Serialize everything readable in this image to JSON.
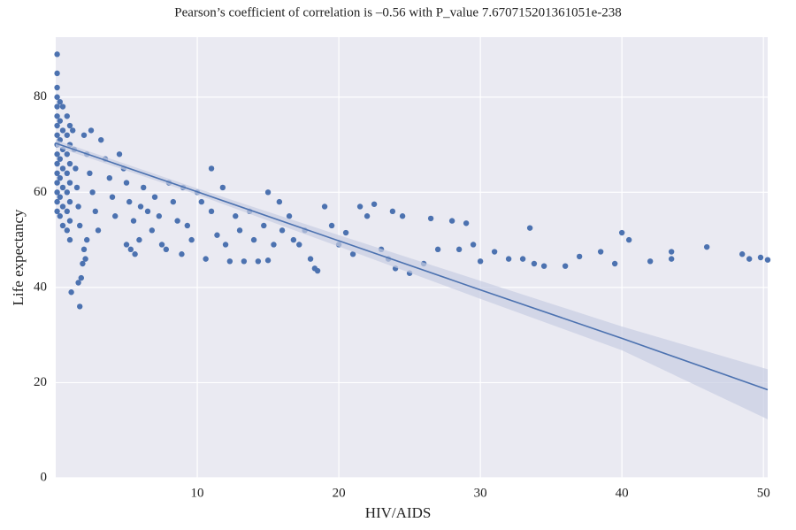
{
  "chart_data": {
    "type": "scatter",
    "title": "Pearson’s coefficient of correlation is –0.56 with P_value 7.670715201361051e-238",
    "x_label": "HIV/AIDS",
    "y_label": "Life expectancy",
    "color": "#4c72b0",
    "band_color": "#c8cde3",
    "background": "#eaeaf2",
    "grid": true,
    "xlim": [
      0,
      50.3
    ],
    "ylim": [
      0,
      92.6
    ],
    "xticks": [
      10,
      20,
      30,
      40,
      50
    ],
    "yticks": [
      0,
      20,
      40,
      60,
      80
    ],
    "x": [
      0.1,
      0.1,
      0.1,
      0.1,
      0.1,
      0.1,
      0.1,
      0.1,
      0.1,
      0.1,
      0.1,
      0.1,
      0.1,
      0.1,
      0.1,
      0.1,
      0.3,
      0.3,
      0.3,
      0.3,
      0.3,
      0.3,
      0.3,
      0.5,
      0.5,
      0.5,
      0.5,
      0.5,
      0.5,
      0.5,
      0.8,
      0.8,
      0.8,
      0.8,
      0.8,
      0.8,
      0.8,
      1,
      1,
      1,
      1,
      1,
      1,
      1,
      1.2,
      1.3,
      1.4,
      1.5,
      1.6,
      1.7,
      1.1,
      1.6,
      1.8,
      1.7,
      1.9,
      2,
      2.1,
      2.2,
      2,
      2.2,
      2.4,
      2.6,
      2.8,
      3,
      2.5,
      3.2,
      3.5,
      3.8,
      4,
      4.2,
      4.5,
      4.8,
      5,
      5.2,
      5.5,
      5,
      5.3,
      5.6,
      5.9,
      6,
      6.2,
      6.5,
      6.8,
      7,
      7.3,
      7.5,
      7.8,
      8,
      8.3,
      8.6,
      8.9,
      9,
      9.3,
      9.6,
      10,
      10.3,
      10.6,
      11,
      11,
      11.4,
      11.8,
      12,
      12.3,
      12.7,
      13,
      13.3,
      13.7,
      14,
      14.3,
      14.7,
      15,
      15,
      15.4,
      15.8,
      16,
      16.5,
      16.8,
      17.2,
      17.6,
      18,
      18.3,
      18.5,
      19,
      19.5,
      20,
      20.5,
      21,
      21.5,
      22,
      22.5,
      23,
      23.5,
      23.8,
      24,
      24.5,
      25,
      26,
      26.5,
      27,
      28,
      28.5,
      29,
      29.5,
      30,
      31,
      32,
      33,
      33.5,
      33.8,
      34.5,
      36,
      37,
      38.5,
      39.5,
      40,
      40.5,
      42,
      43.5,
      43.5,
      46,
      48.5,
      49,
      49.8,
      50.3
    ],
    "y": [
      89,
      85,
      82,
      80,
      78,
      76,
      74,
      72,
      70,
      68,
      66,
      64,
      62,
      60,
      58,
      56,
      79,
      75,
      71,
      67,
      63,
      59,
      55,
      78,
      73,
      69,
      65,
      61,
      57,
      53,
      76,
      72,
      68,
      64,
      60,
      56,
      52,
      74,
      70,
      66,
      62,
      58,
      54,
      50,
      73,
      69,
      65,
      61,
      57,
      53,
      39,
      41,
      42,
      36,
      45,
      48,
      46,
      50,
      72,
      68,
      64,
      60,
      56,
      52,
      73,
      71,
      67,
      63,
      59,
      55,
      68,
      65,
      62,
      58,
      54,
      49,
      48,
      47,
      50,
      57,
      61,
      56,
      52,
      59,
      55,
      49,
      48,
      62,
      58,
      54,
      47,
      61,
      53,
      50,
      60,
      58,
      46,
      56,
      65,
      51,
      61,
      49,
      45.5,
      55,
      52,
      45.5,
      56,
      50,
      45.5,
      53,
      60,
      45.7,
      49,
      58,
      52,
      55,
      50,
      49,
      52,
      46,
      44,
      43.5,
      57,
      53,
      49,
      51.5,
      47,
      57,
      55,
      57.5,
      48,
      46,
      56,
      44,
      55,
      43,
      45,
      54.5,
      48,
      54,
      48,
      53.5,
      49,
      45.5,
      47.5,
      46,
      46,
      52.5,
      45,
      44.5,
      44.5,
      46.5,
      47.5,
      45,
      51.5,
      50,
      45.5,
      46,
      47.5,
      48.5,
      47,
      46,
      46.3,
      45.8
    ],
    "regression": {
      "x": [
        0,
        10,
        20,
        30,
        40,
        50.3
      ],
      "y": [
        70.3,
        60.1,
        49.8,
        39.5,
        29.3,
        18.5
      ],
      "lower": [
        69.6,
        59.5,
        48.6,
        37.6,
        26.8,
        12.3
      ],
      "upper": [
        71,
        60.8,
        51,
        41.4,
        31.8,
        22.8
      ]
    }
  }
}
